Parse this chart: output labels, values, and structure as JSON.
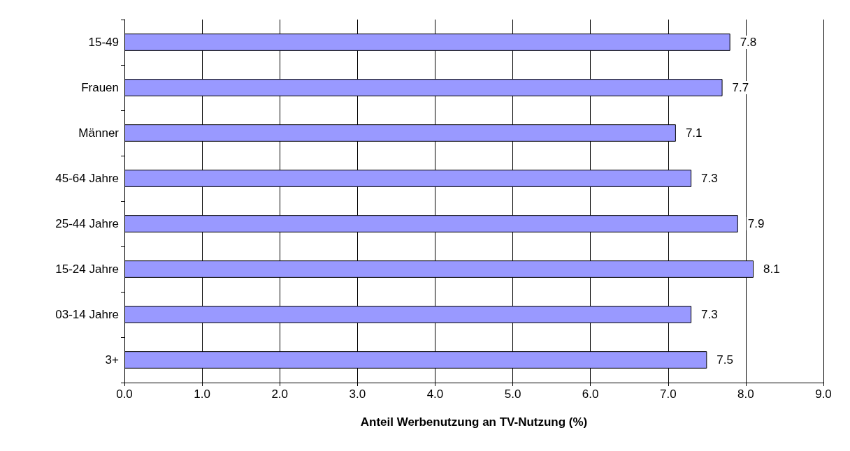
{
  "chart_data": {
    "type": "bar",
    "orientation": "horizontal",
    "xlabel": "Anteil Werbenutzung an TV-Nutzung (%)",
    "categories": [
      "15-49",
      "Frauen",
      "Männer",
      "45-64 Jahre",
      "25-44 Jahre",
      "15-24 Jahre",
      "03-14 Jahre",
      "3+"
    ],
    "values": [
      7.8,
      7.7,
      7.1,
      7.3,
      7.9,
      8.1,
      7.3,
      7.5
    ],
    "color": "#9999ff",
    "xlim": [
      0,
      9
    ],
    "xticks": [
      {
        "value": 0,
        "label": "0.0"
      },
      {
        "value": 1,
        "label": "1.0"
      },
      {
        "value": 2,
        "label": "2.0"
      },
      {
        "value": 3,
        "label": "3.0"
      },
      {
        "value": 4,
        "label": "4.0"
      },
      {
        "value": 5,
        "label": "5.0"
      },
      {
        "value": 6,
        "label": "6.0"
      },
      {
        "value": 7,
        "label": "7.0"
      },
      {
        "value": 8,
        "label": "8.0"
      },
      {
        "value": 9,
        "label": "9.0"
      }
    ],
    "grid": "x",
    "data_labels": true
  }
}
